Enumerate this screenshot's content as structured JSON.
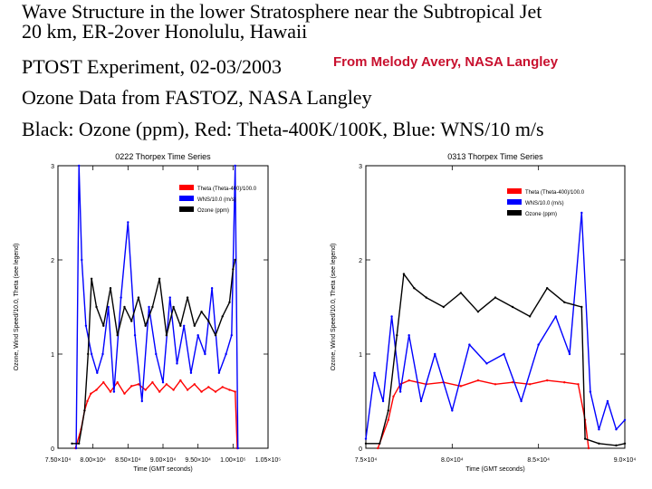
{
  "header": {
    "line1": "Wave Structure in the lower Stratosphere near the Subtropical Jet",
    "line2": "20 km, ER-2over Honolulu, Hawaii",
    "line3": "PTOST Experiment, 02-03/2003",
    "credit": "From Melody Avery, NASA Langley",
    "line4": "Ozone Data from FASTOZ, NASA Langley",
    "line5": "Black: Ozone (ppm), Red: Theta-400K/100K, Blue: WNS/10 m/s"
  },
  "colors": {
    "ozone": "#000000",
    "theta": "#ff0000",
    "wns": "#0000ff",
    "credit": "#c8102e"
  },
  "chart_data": [
    {
      "type": "line",
      "title": "0222 Thorpex Time Series",
      "xlabel": "Time (GMT seconds)",
      "ylabel": "Ozone, Wind Speed/10.0, Theta (see legend)",
      "xlim": [
        75000,
        105000
      ],
      "ylim": [
        0,
        3
      ],
      "xticks": [
        75000,
        80000,
        85000,
        90000,
        95000,
        100000,
        105000
      ],
      "xtick_labels": [
        "7.50×10⁴",
        "8.00×10⁴",
        "8.50×10⁴",
        "9.00×10⁴",
        "9.50×10⁴",
        "1.00×10⁵",
        "1.05×10⁵"
      ],
      "yticks": [
        0,
        1,
        2,
        3
      ],
      "ytick_labels": [
        "0",
        "1",
        "2",
        "3"
      ],
      "legend": [
        "Theta (Theta-400)/100.0",
        "WNS/10.0 (m/s)",
        "Ozone (ppm)"
      ],
      "legend_position": "top-right",
      "series": [
        {
          "name": "Theta (Theta-400)/100.0",
          "color": "#ff0000",
          "x": [
            77500,
            78300,
            78800,
            79200,
            79700,
            80500,
            81500,
            82500,
            83500,
            84500,
            85500,
            86500,
            87500,
            88500,
            89500,
            90500,
            91500,
            92500,
            93500,
            94500,
            95500,
            96500,
            97500,
            98500,
            99500,
            100300,
            100600
          ],
          "y": [
            0.0,
            0.2,
            0.4,
            0.5,
            0.58,
            0.62,
            0.7,
            0.6,
            0.7,
            0.58,
            0.66,
            0.68,
            0.62,
            0.7,
            0.6,
            0.68,
            0.62,
            0.72,
            0.62,
            0.68,
            0.6,
            0.65,
            0.6,
            0.65,
            0.62,
            0.6,
            0.0
          ]
        },
        {
          "name": "WNS/10.0 (m/s)",
          "color": "#0000ff",
          "x": [
            77600,
            78000,
            78400,
            79000,
            79800,
            80600,
            81400,
            82200,
            83000,
            84000,
            85000,
            86000,
            87000,
            88000,
            89000,
            90000,
            91000,
            92000,
            93000,
            94000,
            95000,
            96000,
            97000,
            98000,
            99000,
            99800,
            100300,
            100700
          ],
          "y": [
            0.0,
            3.0,
            2.0,
            1.3,
            1.0,
            0.8,
            1.0,
            1.5,
            0.6,
            1.6,
            2.4,
            1.2,
            0.5,
            1.5,
            1.0,
            0.7,
            1.6,
            0.9,
            1.3,
            0.8,
            1.2,
            1.0,
            1.7,
            0.8,
            1.0,
            1.2,
            3.0,
            0.0
          ]
        },
        {
          "name": "Ozone (ppm)",
          "color": "#000000",
          "x": [
            77000,
            78000,
            78800,
            79300,
            79800,
            80500,
            81500,
            82500,
            83500,
            84500,
            85500,
            86500,
            87500,
            88500,
            89500,
            90500,
            91500,
            92500,
            93500,
            94500,
            95500,
            96500,
            97500,
            98500,
            99500,
            100000,
            100300
          ],
          "y": [
            0.05,
            0.05,
            0.4,
            1.0,
            1.8,
            1.5,
            1.3,
            1.7,
            1.2,
            1.5,
            1.35,
            1.6,
            1.3,
            1.5,
            1.8,
            1.2,
            1.5,
            1.3,
            1.6,
            1.3,
            1.45,
            1.35,
            1.2,
            1.4,
            1.55,
            1.9,
            2.0
          ]
        }
      ]
    },
    {
      "type": "line",
      "title": "0313 Thorpex Time Series",
      "xlabel": "Time (GMT seconds)",
      "ylabel": "Ozone, Wind Speed/10.0, Theta (see legend)",
      "xlim": [
        75000,
        90000
      ],
      "ylim": [
        0,
        3
      ],
      "xticks": [
        75000,
        80000,
        85000,
        90000
      ],
      "xtick_labels": [
        "7.5×10⁴",
        "8.0×10⁴",
        "8.5×10⁴",
        "9.0×10⁴"
      ],
      "yticks": [
        0,
        1,
        2,
        3
      ],
      "ytick_labels": [
        "0",
        "1",
        "2",
        "3"
      ],
      "legend": [
        "Theta (Theta-400)/100.0",
        "WNS/10.0 (m/s)",
        "Ozone (ppm)"
      ],
      "legend_position": "top-right",
      "series": [
        {
          "name": "Theta (Theta-400)/100.0",
          "color": "#ff0000",
          "x": [
            75700,
            76300,
            76600,
            77000,
            77500,
            78500,
            79500,
            80500,
            81500,
            82500,
            83500,
            84500,
            85500,
            86500,
            87300,
            87700,
            87900
          ],
          "y": [
            0.0,
            0.3,
            0.55,
            0.68,
            0.72,
            0.68,
            0.7,
            0.66,
            0.72,
            0.68,
            0.7,
            0.68,
            0.72,
            0.7,
            0.68,
            0.3,
            0.0
          ]
        },
        {
          "name": "WNS/10.0 (m/s)",
          "color": "#0000ff",
          "x": [
            75000,
            75500,
            76000,
            76500,
            77000,
            77500,
            78200,
            79000,
            80000,
            81000,
            82000,
            83000,
            84000,
            85000,
            86000,
            86800,
            87500,
            88000,
            88500,
            89000,
            89500,
            90000
          ],
          "y": [
            0.1,
            0.8,
            0.5,
            1.4,
            0.6,
            1.2,
            0.5,
            1.0,
            0.4,
            1.1,
            0.9,
            1.0,
            0.5,
            1.1,
            1.4,
            1.0,
            2.5,
            0.6,
            0.2,
            0.5,
            0.2,
            0.3
          ]
        },
        {
          "name": "Ozone (ppm)",
          "color": "#000000",
          "x": [
            75000,
            75800,
            76300,
            76800,
            77200,
            77800,
            78500,
            79500,
            80500,
            81500,
            82500,
            83500,
            84500,
            85500,
            86500,
            87500,
            87700,
            88500,
            89500,
            90000
          ],
          "y": [
            0.05,
            0.05,
            0.4,
            1.2,
            1.85,
            1.7,
            1.6,
            1.5,
            1.65,
            1.45,
            1.6,
            1.5,
            1.4,
            1.7,
            1.55,
            1.5,
            0.1,
            0.05,
            0.03,
            0.05
          ]
        }
      ]
    }
  ]
}
